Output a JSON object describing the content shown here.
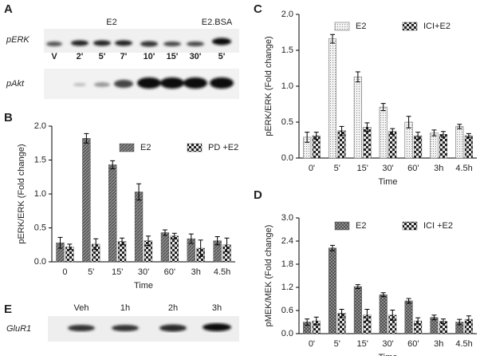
{
  "panels": [
    "A",
    "B",
    "C",
    "D",
    "E"
  ],
  "blot_a": {
    "treatment": "E2",
    "control": "E2.BSA",
    "rows": [
      "pERK",
      "pAkt"
    ],
    "lanes": [
      "V",
      "2'",
      "5'",
      "7'",
      "10'",
      "15'",
      "30'",
      "5'"
    ]
  },
  "blot_e": {
    "row": "GluR1",
    "lanes": [
      "Veh",
      "1h",
      "2h",
      "3h"
    ]
  },
  "chart_data": [
    {
      "type": "bar",
      "xlabel": "Time",
      "ylabel": "pERK/ERK (Fold change)",
      "categories": [
        "0",
        "5'",
        "15'",
        "30'",
        "60'",
        "3h",
        "4.5h"
      ],
      "ylim": [
        0,
        2.0
      ],
      "yticks": [
        {
          "value": 0,
          "label": "0.0"
        },
        0.5,
        {
          "value": 1,
          "label": "1.0"
        },
        1.5,
        {
          "value": 2,
          "label": "2.0"
        }
      ],
      "series": [
        {
          "name": "E2",
          "color": "#8a8a8a",
          "hatch": "diagonal",
          "values": [
            0.28,
            1.82,
            1.43,
            1.03,
            0.43,
            0.34,
            0.31
          ],
          "errors": [
            0.08,
            0.07,
            0.06,
            0.12,
            0.04,
            0.07,
            0.06
          ]
        },
        {
          "name": "PD +E2",
          "color": "#e8e8e8",
          "hatch": "checker",
          "values": [
            0.22,
            0.26,
            0.3,
            0.31,
            0.38,
            0.2,
            0.25
          ],
          "errors": [
            0.04,
            0.08,
            0.05,
            0.07,
            0.04,
            0.12,
            0.1
          ]
        }
      ]
    },
    {
      "type": "bar",
      "xlabel": "Time",
      "ylabel": "pERK/ERK (Fold change)",
      "categories": [
        "0'",
        "5'",
        "15'",
        "30'",
        "60'",
        "3h",
        "4.5h"
      ],
      "ylim": [
        0,
        2.0
      ],
      "yticks": [
        {
          "value": 0,
          "label": "0.0"
        },
        0.5,
        {
          "value": 1,
          "label": "1.0"
        },
        1.5,
        {
          "value": 2,
          "label": "2.0"
        }
      ],
      "series": [
        {
          "name": "E2",
          "color": "#f2f2f2",
          "hatch": "dots",
          "values": [
            0.29,
            1.66,
            1.13,
            0.71,
            0.5,
            0.35,
            0.44
          ],
          "errors": [
            0.07,
            0.06,
            0.07,
            0.05,
            0.08,
            0.04,
            0.03
          ]
        },
        {
          "name": "ICI+E2",
          "color": "#e8e8e8",
          "hatch": "checker",
          "values": [
            0.31,
            0.38,
            0.43,
            0.37,
            0.31,
            0.33,
            0.31
          ],
          "errors": [
            0.05,
            0.06,
            0.06,
            0.04,
            0.05,
            0.04,
            0.03
          ]
        }
      ]
    },
    {
      "type": "bar",
      "xlabel": "Time",
      "ylabel": "pMEK/MEK (Fold change)",
      "categories": [
        "0'",
        "5'",
        "15'",
        "30'",
        "60'",
        "3h",
        "4.5h"
      ],
      "ylim": [
        0,
        3.0
      ],
      "yticks": [
        {
          "value": 0,
          "label": "0.0"
        },
        0.6,
        1.2,
        1.8,
        2.4,
        {
          "value": 3,
          "label": "3.0"
        }
      ],
      "series": [
        {
          "name": "E2",
          "color": "#9a9a9a",
          "hatch": "cross",
          "values": [
            0.3,
            2.22,
            1.22,
            1.01,
            0.85,
            0.42,
            0.3
          ],
          "errors": [
            0.08,
            0.07,
            0.05,
            0.05,
            0.06,
            0.06,
            0.07
          ]
        },
        {
          "name": "ICI +E2",
          "color": "#e8e8e8",
          "hatch": "checker",
          "values": [
            0.33,
            0.53,
            0.48,
            0.48,
            0.33,
            0.32,
            0.37
          ],
          "errors": [
            0.1,
            0.1,
            0.15,
            0.13,
            0.08,
            0.06,
            0.09
          ]
        }
      ]
    }
  ]
}
